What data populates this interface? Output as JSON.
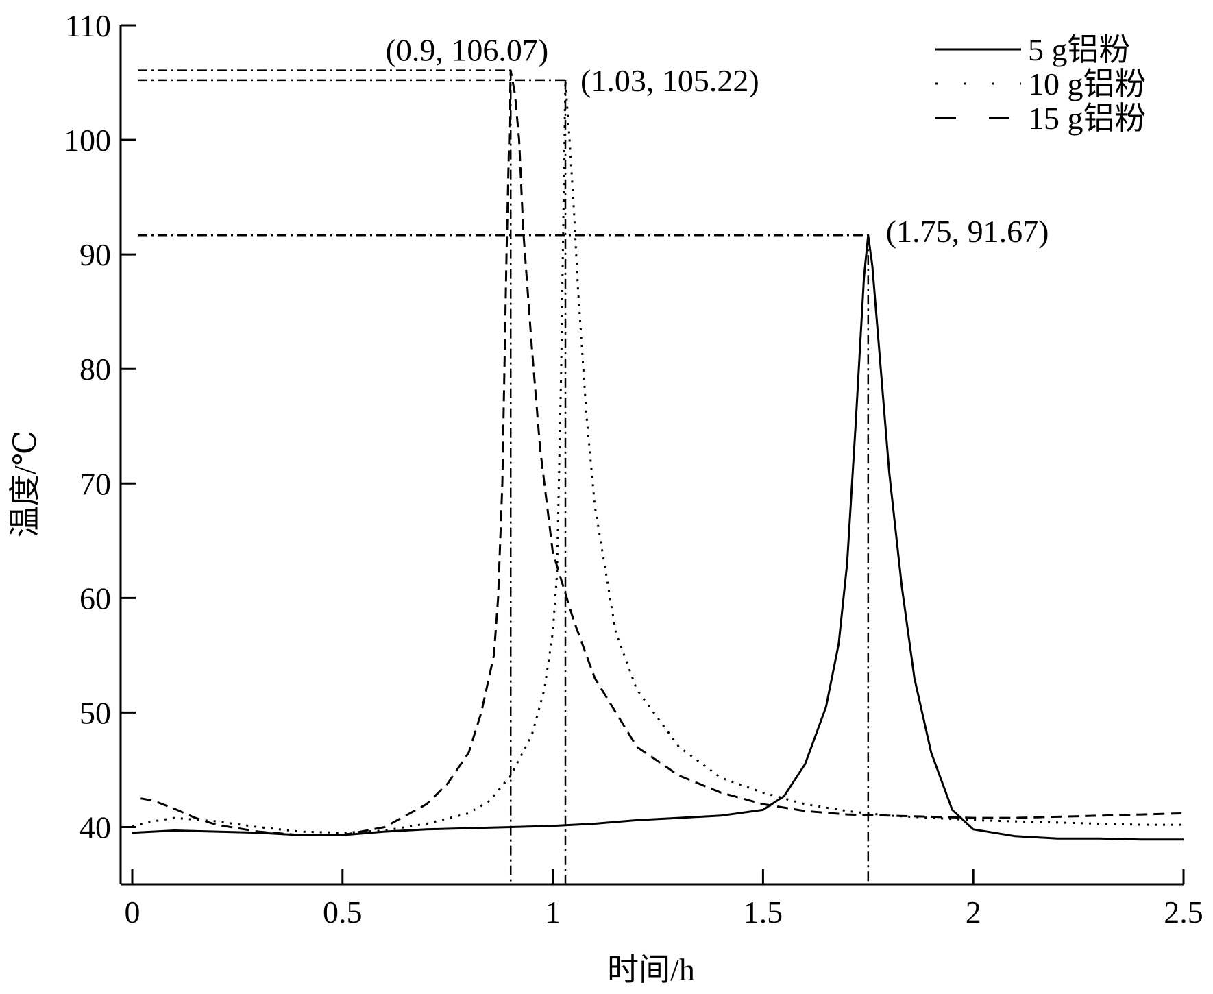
{
  "chart_data": {
    "type": "line",
    "title": "",
    "xlabel": "时间/h",
    "ylabel": "温度/℃",
    "xlim": [
      0,
      2.5
    ],
    "ylim": [
      35,
      110
    ],
    "xticks": [
      "0",
      "0.5",
      "1",
      "1.5",
      "2",
      "2.5"
    ],
    "xtick_values": [
      0,
      0.5,
      1,
      1.5,
      2,
      2.5
    ],
    "yticks": [
      "40",
      "50",
      "60",
      "70",
      "80",
      "90",
      "100",
      "110"
    ],
    "ytick_values": [
      40,
      50,
      60,
      70,
      80,
      90,
      100,
      110
    ],
    "grid": false,
    "legend_position": "top-right",
    "series": [
      {
        "name": "5 g铝粉",
        "style": "solid",
        "x": [
          0,
          0.05,
          0.1,
          0.2,
          0.3,
          0.4,
          0.5,
          0.6,
          0.7,
          0.8,
          0.9,
          1.0,
          1.1,
          1.2,
          1.3,
          1.4,
          1.5,
          1.55,
          1.6,
          1.65,
          1.68,
          1.7,
          1.72,
          1.74,
          1.75,
          1.76,
          1.78,
          1.8,
          1.83,
          1.86,
          1.9,
          1.95,
          2.0,
          2.1,
          2.2,
          2.3,
          2.4,
          2.5
        ],
        "y": [
          39.5,
          39.6,
          39.7,
          39.6,
          39.5,
          39.3,
          39.3,
          39.6,
          39.8,
          39.9,
          40.0,
          40.1,
          40.3,
          40.6,
          40.8,
          41.0,
          41.5,
          42.7,
          45.5,
          50.5,
          56.0,
          63.0,
          75.0,
          88.0,
          91.67,
          89.0,
          80.0,
          71.0,
          61.0,
          53.0,
          46.5,
          41.5,
          39.8,
          39.2,
          39.0,
          39.0,
          38.9,
          38.9
        ]
      },
      {
        "name": "10 g铝粉",
        "style": "dotted",
        "x": [
          0,
          0.05,
          0.1,
          0.2,
          0.3,
          0.4,
          0.5,
          0.6,
          0.7,
          0.8,
          0.85,
          0.9,
          0.95,
          0.98,
          1.0,
          1.01,
          1.02,
          1.03,
          1.04,
          1.05,
          1.06,
          1.08,
          1.1,
          1.15,
          1.2,
          1.3,
          1.4,
          1.5,
          1.6,
          1.7,
          1.8,
          1.9,
          2.0,
          2.1,
          2.2,
          2.3,
          2.4,
          2.5
        ],
        "y": [
          40.1,
          40.5,
          40.8,
          40.5,
          40.0,
          39.6,
          39.5,
          39.7,
          40.3,
          41.2,
          42.3,
          44.5,
          48.0,
          52.0,
          57.0,
          62.0,
          80.0,
          105.22,
          100.0,
          94.0,
          87.0,
          76.0,
          68.0,
          57.0,
          52.0,
          47.0,
          44.3,
          43.0,
          42.0,
          41.4,
          41.0,
          40.8,
          40.6,
          40.5,
          40.4,
          40.3,
          40.2,
          40.2
        ]
      },
      {
        "name": "15 g铝粉",
        "style": "dashed",
        "x": [
          0.02,
          0.05,
          0.1,
          0.15,
          0.2,
          0.3,
          0.4,
          0.5,
          0.6,
          0.7,
          0.75,
          0.8,
          0.83,
          0.86,
          0.87,
          0.88,
          0.89,
          0.9,
          0.91,
          0.92,
          0.93,
          0.95,
          0.97,
          1.0,
          1.05,
          1.1,
          1.2,
          1.3,
          1.4,
          1.5,
          1.6,
          1.7,
          1.8,
          1.9,
          2.0,
          2.1,
          2.2,
          2.3,
          2.4,
          2.5
        ],
        "y": [
          42.5,
          42.3,
          41.6,
          40.8,
          40.2,
          39.6,
          39.3,
          39.3,
          40.0,
          42.0,
          43.8,
          46.5,
          50.0,
          55.0,
          60.0,
          70.0,
          90.0,
          106.07,
          104.0,
          100.0,
          92.0,
          82.0,
          73.0,
          64.0,
          58.0,
          53.0,
          47.0,
          44.5,
          43.0,
          42.0,
          41.4,
          41.1,
          41.0,
          40.9,
          40.8,
          40.8,
          40.9,
          41.0,
          41.1,
          41.2
        ]
      }
    ],
    "annotations": [
      {
        "label": "(0.9, 106.07)",
        "x": 0.9,
        "y": 106.07
      },
      {
        "label": "(1.03, 105.22)",
        "x": 1.03,
        "y": 105.22
      },
      {
        "label": "(1.75, 91.67)",
        "x": 1.75,
        "y": 91.67
      }
    ]
  }
}
